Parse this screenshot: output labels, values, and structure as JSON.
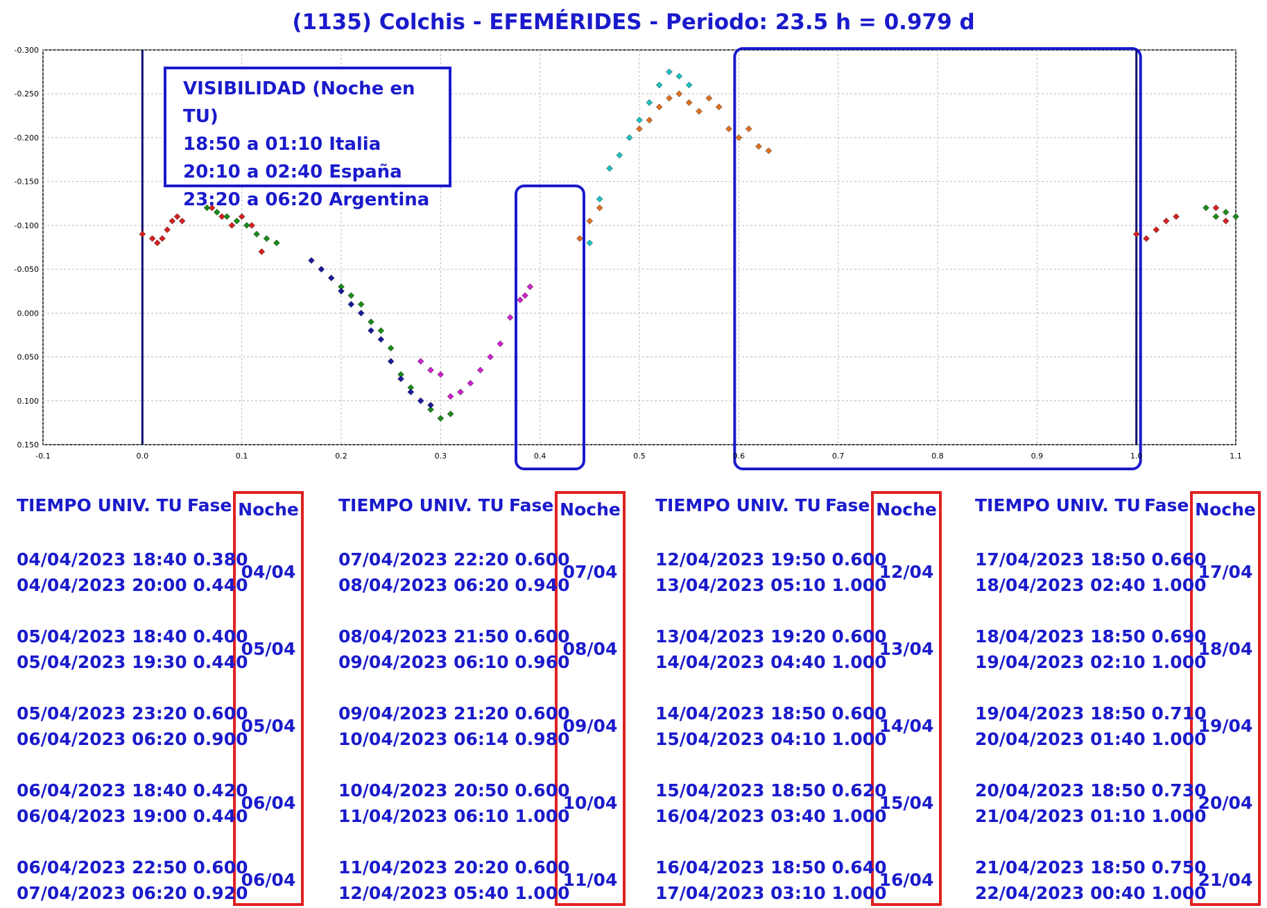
{
  "title": "(1135) Colchis - EFEMÉRIDES - Periodo: 23.5 h = 0.979 d",
  "visibility": {
    "lines": [
      "VISIBILIDAD (Noche en TU)",
      "18:50 a 01:10 Italia",
      "20:10 a 02:40 España",
      "23:20 a 06:20 Argentina"
    ]
  },
  "table_headers": {
    "time": "TIEMPO UNIV. TU",
    "phase": "Fase",
    "night": "Noche"
  },
  "columns": [
    {
      "rows": [
        {
          "l1": "04/04/2023  18:40 0.380",
          "l2": "04/04/2023  20:00 0.440",
          "night": "04/04"
        },
        {
          "l1": "05/04/2023  18:40 0.400",
          "l2": "05/04/2023  19:30 0.440",
          "night": "05/04"
        },
        {
          "l1": "05/04/2023  23:20 0.600",
          "l2": "06/04/2023  06:20 0.900",
          "night": "05/04"
        },
        {
          "l1": "06/04/2023  18:40 0.420",
          "l2": "06/04/2023  19:00 0.440",
          "night": "06/04"
        },
        {
          "l1": "06/04/2023  22:50 0.600",
          "l2": "07/04/2023  06:20 0.920",
          "night": "06/04"
        }
      ]
    },
    {
      "rows": [
        {
          "l1": "07/04/2023  22:20 0.600",
          "l2": "08/04/2023  06:20 0.940",
          "night": "07/04"
        },
        {
          "l1": "08/04/2023  21:50 0.600",
          "l2": "09/04/2023  06:10 0.960",
          "night": "08/04"
        },
        {
          "l1": "09/04/2023  21:20 0.600",
          "l2": "10/04/2023  06:14 0.980",
          "night": "09/04"
        },
        {
          "l1": "10/04/2023  20:50 0.600",
          "l2": "11/04/2023  06:10 1.000",
          "night": "10/04"
        },
        {
          "l1": "11/04/2023  20:20 0.600",
          "l2": "12/04/2023  05:40 1.000",
          "night": "11/04"
        }
      ]
    },
    {
      "rows": [
        {
          "l1": "12/04/2023  19:50 0.600",
          "l2": "13/04/2023  05:10 1.000",
          "night": "12/04"
        },
        {
          "l1": "13/04/2023  19:20 0.600",
          "l2": "14/04/2023  04:40 1.000",
          "night": "13/04"
        },
        {
          "l1": "14/04/2023  18:50 0.600",
          "l2": "15/04/2023  04:10 1.000",
          "night": "14/04"
        },
        {
          "l1": "15/04/2023  18:50 0.620",
          "l2": "16/04/2023  03:40 1.000",
          "night": "15/04"
        },
        {
          "l1": "16/04/2023  18:50 0.640",
          "l2": "17/04/2023  03:10 1.000",
          "night": "16/04"
        }
      ]
    },
    {
      "rows": [
        {
          "l1": "17/04/2023  18:50 0.660",
          "l2": "18/04/2023  02:40 1.000",
          "night": "17/04"
        },
        {
          "l1": "18/04/2023  18:50 0.690",
          "l2": "19/04/2023  02:10 1.000",
          "night": "18/04"
        },
        {
          "l1": "19/04/2023  18:50 0.710",
          "l2": "20/04/2023  01:40 1.000",
          "night": "19/04"
        },
        {
          "l1": "20/04/2023  18:50 0.730",
          "l2": "21/04/2023  01:10 1.000",
          "night": "20/04"
        },
        {
          "l1": "21/04/2023  18:50 0.750",
          "l2": "22/04/2023  00:40 1.000",
          "night": "21/04"
        }
      ]
    }
  ],
  "colors": {
    "title": "#1a1acc",
    "box": "#1a1acc",
    "night_box": "#e02020",
    "vline": "#0a0a6e"
  },
  "chart_data": {
    "type": "scatter",
    "xlim": [
      -0.1,
      1.1
    ],
    "ylim": [
      -0.3,
      0.15
    ],
    "y_inverted": true,
    "x_ticks": [
      "-0.1",
      "0.0",
      "0.1",
      "0.2",
      "0.3",
      "0.4",
      "0.5",
      "0.6",
      "0.7",
      "0.8",
      "0.9",
      "1.0",
      "1.1"
    ],
    "y_ticks": [
      "-0.300",
      "-0.250",
      "-0.200",
      "-0.150",
      "-0.100",
      "-0.050",
      "0.000",
      "0.050",
      "0.100",
      "0.150"
    ],
    "grid": true,
    "vertical_lines_x": [
      0.0,
      1.0
    ],
    "highlight_ranges_x": [
      [
        0.38,
        0.44
      ],
      [
        0.6,
        1.0
      ]
    ],
    "series": [
      {
        "color": "#d42020",
        "points": [
          [
            0.0,
            -0.09
          ],
          [
            0.01,
            -0.085
          ],
          [
            0.015,
            -0.08
          ],
          [
            0.02,
            -0.085
          ],
          [
            0.025,
            -0.095
          ],
          [
            0.03,
            -0.105
          ],
          [
            0.035,
            -0.11
          ],
          [
            0.04,
            -0.105
          ],
          [
            0.07,
            -0.12
          ],
          [
            0.08,
            -0.11
          ],
          [
            0.09,
            -0.1
          ],
          [
            0.1,
            -0.11
          ],
          [
            0.11,
            -0.1
          ],
          [
            0.12,
            -0.07
          ],
          [
            1.0,
            -0.09
          ],
          [
            1.01,
            -0.085
          ],
          [
            1.02,
            -0.095
          ],
          [
            1.03,
            -0.105
          ],
          [
            1.04,
            -0.11
          ],
          [
            1.08,
            -0.12
          ],
          [
            1.09,
            -0.105
          ]
        ]
      },
      {
        "color": "#1a8a1a",
        "points": [
          [
            0.065,
            -0.12
          ],
          [
            0.075,
            -0.115
          ],
          [
            0.085,
            -0.11
          ],
          [
            0.095,
            -0.105
          ],
          [
            0.105,
            -0.1
          ],
          [
            0.115,
            -0.09
          ],
          [
            0.125,
            -0.085
          ],
          [
            0.135,
            -0.08
          ],
          [
            0.2,
            -0.03
          ],
          [
            0.21,
            -0.02
          ],
          [
            0.22,
            -0.01
          ],
          [
            0.23,
            0.01
          ],
          [
            0.24,
            0.02
          ],
          [
            0.25,
            0.04
          ],
          [
            0.26,
            0.07
          ],
          [
            0.27,
            0.085
          ],
          [
            0.28,
            0.1
          ],
          [
            0.29,
            0.11
          ],
          [
            0.3,
            0.12
          ],
          [
            0.31,
            0.115
          ],
          [
            0.32,
            0.09
          ],
          [
            1.07,
            -0.12
          ],
          [
            1.08,
            -0.11
          ],
          [
            1.09,
            -0.115
          ],
          [
            1.1,
            -0.11
          ]
        ]
      },
      {
        "color": "#1a1a99",
        "points": [
          [
            0.17,
            -0.06
          ],
          [
            0.18,
            -0.05
          ],
          [
            0.19,
            -0.04
          ],
          [
            0.2,
            -0.025
          ],
          [
            0.21,
            -0.01
          ],
          [
            0.22,
            0.0
          ],
          [
            0.23,
            0.02
          ],
          [
            0.24,
            0.03
          ],
          [
            0.25,
            0.055
          ],
          [
            0.26,
            0.075
          ],
          [
            0.27,
            0.09
          ],
          [
            0.28,
            0.1
          ],
          [
            0.29,
            0.105
          ]
        ]
      },
      {
        "color": "#cc22cc",
        "points": [
          [
            0.28,
            0.055
          ],
          [
            0.29,
            0.065
          ],
          [
            0.3,
            0.07
          ],
          [
            0.31,
            0.095
          ],
          [
            0.32,
            0.09
          ],
          [
            0.33,
            0.08
          ],
          [
            0.34,
            0.065
          ],
          [
            0.35,
            0.05
          ],
          [
            0.36,
            0.035
          ],
          [
            0.37,
            0.005
          ],
          [
            0.38,
            -0.015
          ],
          [
            0.39,
            -0.03
          ],
          [
            0.385,
            -0.02
          ]
        ]
      },
      {
        "color": "#e07020",
        "points": [
          [
            0.44,
            -0.085
          ],
          [
            0.45,
            -0.105
          ],
          [
            0.46,
            -0.12
          ],
          [
            0.5,
            -0.21
          ],
          [
            0.51,
            -0.22
          ],
          [
            0.52,
            -0.235
          ],
          [
            0.53,
            -0.245
          ],
          [
            0.54,
            -0.25
          ],
          [
            0.55,
            -0.24
          ],
          [
            0.56,
            -0.23
          ],
          [
            0.57,
            -0.245
          ],
          [
            0.58,
            -0.235
          ],
          [
            0.59,
            -0.21
          ],
          [
            0.6,
            -0.2
          ],
          [
            0.61,
            -0.21
          ],
          [
            0.62,
            -0.19
          ],
          [
            0.63,
            -0.185
          ]
        ]
      },
      {
        "color": "#20c0c0",
        "points": [
          [
            0.45,
            -0.08
          ],
          [
            0.46,
            -0.13
          ],
          [
            0.47,
            -0.165
          ],
          [
            0.48,
            -0.18
          ],
          [
            0.49,
            -0.2
          ],
          [
            0.5,
            -0.22
          ],
          [
            0.51,
            -0.24
          ],
          [
            0.52,
            -0.26
          ],
          [
            0.53,
            -0.275
          ],
          [
            0.54,
            -0.27
          ],
          [
            0.55,
            -0.26
          ]
        ]
      }
    ]
  }
}
